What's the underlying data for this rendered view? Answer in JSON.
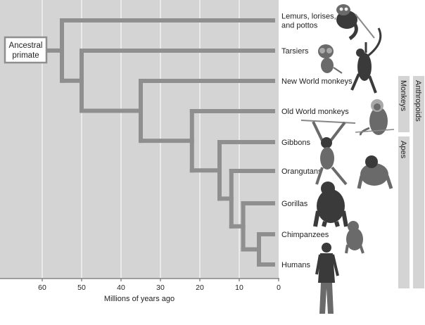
{
  "root_label": "Ancestral primate",
  "root_label_lines": [
    "Ancestral",
    "primate"
  ],
  "taxa": [
    {
      "name": "Lemurs, lorises, and pottos",
      "lines": [
        "Lemurs, lorises,",
        "and pottos"
      ]
    },
    {
      "name": "Tarsiers",
      "lines": [
        "Tarsiers"
      ]
    },
    {
      "name": "New World monkeys",
      "lines": [
        "New World monkeys"
      ]
    },
    {
      "name": "Old World monkeys",
      "lines": [
        "Old World monkeys"
      ]
    },
    {
      "name": "Gibbons",
      "lines": [
        "Gibbons"
      ]
    },
    {
      "name": "Orangutans",
      "lines": [
        "Orangutans"
      ]
    },
    {
      "name": "Gorillas",
      "lines": [
        "Gorillas"
      ]
    },
    {
      "name": "Chimpanzees",
      "lines": [
        "Chimpanzees"
      ]
    },
    {
      "name": "Humans",
      "lines": [
        "Humans"
      ]
    }
  ],
  "branch_points_mya": [
    55,
    50,
    35,
    22,
    15,
    12,
    9,
    5
  ],
  "axis": {
    "label": "Millions of years ago",
    "ticks": [
      60,
      50,
      40,
      30,
      20,
      10,
      0
    ]
  },
  "groups": [
    {
      "name": "Monkeys"
    },
    {
      "name": "Apes"
    },
    {
      "name": "Anthropoids"
    }
  ],
  "illustration_icons": [
    "lemur-illustration",
    "tarsier-illustration",
    "spider-monkey-illustration",
    "old-world-monkey-illustration",
    "gibbon-illustration",
    "orangutan-illustration",
    "gorilla-illustration",
    "chimpanzee-illustration",
    "human-illustration"
  ],
  "colors": {
    "background_panel": "#d4d4d4",
    "branch": "#8f8f8f",
    "gridline": "#ffffff",
    "group_bar": "#d4d4d4",
    "root_box_border": "#8f8f8f"
  }
}
